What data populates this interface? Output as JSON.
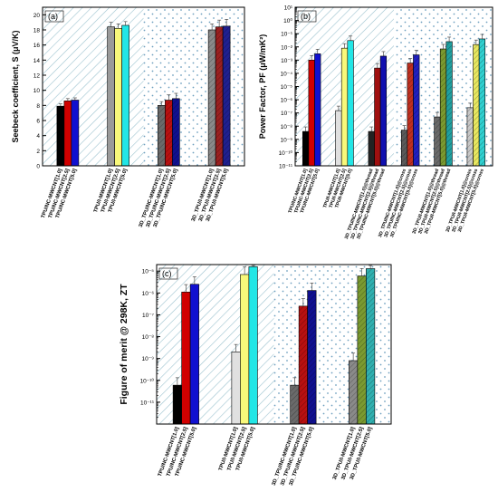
{
  "chart_data": [
    {
      "type": "bar",
      "panel_label": "(a)",
      "ylabel": "Seebeck coefficient, S (μV/K)",
      "yscale": "linear",
      "ylim": [
        0,
        21
      ],
      "yticks": [
        "0",
        "2",
        "4",
        "6",
        "8",
        "10",
        "12",
        "14",
        "16",
        "18",
        "20"
      ],
      "groups": [
        {
          "label": "",
          "items": [
            {
              "label": "TPU/NC-MWCNT[1.0]",
              "value": 7.9,
              "err": 0.3,
              "color": "#000000"
            },
            {
              "label": "TPU/NC-MWCNT[2.5]",
              "value": 8.6,
              "err": 0.3,
              "color": "#d10000"
            },
            {
              "label": "TPU/NC-MWCNT[5.0]",
              "value": 8.7,
              "err": 0.3,
              "color": "#1010d0"
            }
          ]
        },
        {
          "label": "",
          "items": [
            {
              "label": "TPU/I-MWCNT[1.0]",
              "value": 18.4,
              "err": 0.6,
              "color": "#9a9a9a"
            },
            {
              "label": "TPU/I-MWCNT[2.5]",
              "value": 18.2,
              "err": 0.6,
              "color": "#f8f87a"
            },
            {
              "label": "TPU/I-MWCNT[5.0]",
              "value": 18.6,
              "err": 0.5,
              "color": "#22e6e6"
            }
          ]
        },
        {
          "label": "",
          "items": [
            {
              "label": "3D_TPU/NC-MWCNT[1.0]",
              "value": 8.0,
              "err": 0.5,
              "color": "#6a6a6a"
            },
            {
              "label": "3D_TPU/NC-MWCNT[2.5]",
              "value": 8.7,
              "err": 0.7,
              "color": "#b81010"
            },
            {
              "label": "3D_TPU/NC-MWCNT[5.0]",
              "value": 8.9,
              "err": 0.7,
              "color": "#101090"
            }
          ]
        },
        {
          "label": "",
          "items": [
            {
              "label": "3D_TPU/I-MWCNT[1.0]",
              "value": 18.0,
              "err": 0.8,
              "color": "#8a8a8a"
            },
            {
              "label": "3D_TPU/I-MWCNT[2.5]",
              "value": 18.4,
              "err": 0.9,
              "color": "#9a2020"
            },
            {
              "label": "3D_TPU/I-MWCNT[5.0]",
              "value": 18.5,
              "err": 0.9,
              "color": "#202090"
            }
          ]
        }
      ]
    },
    {
      "type": "bar",
      "panel_label": "(b)",
      "ylabel": "Power Factor, PF (μW/mK²)",
      "yscale": "log",
      "ylim_exp": [
        -11,
        1
      ],
      "yticks": [
        "10⁻¹¹",
        "10⁻¹⁰",
        "10⁻⁹",
        "10⁻⁸",
        "10⁻⁷",
        "10⁻⁶",
        "10⁻⁵",
        "10⁻⁴",
        "10⁻³",
        "10⁻²",
        "10⁻¹",
        "10⁰",
        "10¹"
      ],
      "groups": [
        {
          "label": "",
          "items": [
            {
              "label": "TPU/NC-MWCNT[1.0]",
              "value": 4e-09,
              "color": "#000000"
            },
            {
              "label": "TPU/NC-MWCNT[2.5]",
              "value": 0.001,
              "color": "#d10000"
            },
            {
              "label": "TPU/NC-MWCNT[5.0]",
              "value": 0.003,
              "color": "#1010d0"
            }
          ]
        },
        {
          "label": "",
          "items": [
            {
              "label": "TPU/I-MWCNT[1.0]",
              "value": 1.5e-07,
              "color": "#e0e0e0"
            },
            {
              "label": "TPU/I-MWCNT[2.5]",
              "value": 0.008,
              "color": "#f8f87a"
            },
            {
              "label": "TPU/I-MWCNT[5.0]",
              "value": 0.03,
              "color": "#22e6e6"
            }
          ]
        },
        {
          "label": "",
          "items": [
            {
              "label": "3D_TPU/NC-MWCNT[1.0]@thread",
              "value": 4e-09,
              "color": "#222222"
            },
            {
              "label": "3D_TPU/NC-MWCNT[2.5]@thread",
              "value": 0.00025,
              "color": "#a01010"
            },
            {
              "label": "3D_TPU/NC-MWCNT[5.0]@thread",
              "value": 0.002,
              "color": "#1010b0"
            }
          ]
        },
        {
          "label": "",
          "items": [
            {
              "label": "3D_TPU/NC-MWCNT[1.0]@cross",
              "value": 5e-09,
              "color": "#5a5a5a"
            },
            {
              "label": "3D_TPU/NC-MWCNT[2.5]@cross",
              "value": 0.0006,
              "color": "#c03020"
            },
            {
              "label": "3D_TPU/NC-MWCNT[5.0]@cross",
              "value": 0.0025,
              "color": "#2020c0"
            }
          ]
        },
        {
          "label": "",
          "items": [
            {
              "label": "3D_TPU/I-MWCNT[1.0]@thread",
              "value": 5e-08,
              "color": "#6a6a6a"
            },
            {
              "label": "3D_TPU/I-MWCNT[2.5]@thread",
              "value": 0.007,
              "color": "#7a9a30"
            },
            {
              "label": "3D_TPU/I-MWCNT[5.0]@thread",
              "value": 0.025,
              "color": "#20a0a0"
            }
          ]
        },
        {
          "label": "",
          "items": [
            {
              "label": "3D_TPU/I-MWCNT[1.0]@cross",
              "value": 2.5e-07,
              "color": "#c8c8c8"
            },
            {
              "label": "3D_TPU/I-MWCNT[2.5]@cross",
              "value": 0.015,
              "color": "#e8e860"
            },
            {
              "label": "3D_TPU/I-MWCNT[5.0]@cross",
              "value": 0.04,
              "color": "#30d0d0"
            }
          ]
        }
      ]
    },
    {
      "type": "bar",
      "panel_label": "(c)",
      "ylabel": "Figure of merit @ 298K, ZT",
      "yscale": "log",
      "ylim_exp": [
        -12,
        -4.7
      ],
      "yticks": [
        "10⁻¹¹",
        "10⁻¹⁰",
        "10⁻⁹",
        "10⁻⁸",
        "10⁻⁷",
        "10⁻⁶",
        "10⁻⁵"
      ],
      "groups": [
        {
          "label": "",
          "items": [
            {
              "label": "TPU/NC-MWCNT[1.0]",
              "value": 6e-11,
              "color": "#000000"
            },
            {
              "label": "TPU/NC-MWCNT[2.5]",
              "value": 1.1e-06,
              "color": "#d10000"
            },
            {
              "label": "TPU/NC-MWCNT[5.0]",
              "value": 2.5e-06,
              "color": "#1010d0"
            }
          ]
        },
        {
          "label": "",
          "items": [
            {
              "label": "TPU/I-MWCNT[1.0]",
              "value": 2e-09,
              "color": "#e0e0e0"
            },
            {
              "label": "TPU/I-MWCNT[2.5]",
              "value": 7e-06,
              "color": "#f8f87a"
            },
            {
              "label": "TPU/I-MWCNT[5.0]",
              "value": 1.6e-05,
              "color": "#22e6e6"
            }
          ]
        },
        {
          "label": "",
          "items": [
            {
              "label": "3D_TPU/NC-MWCNT[1.0]",
              "value": 6e-11,
              "color": "#6a6a6a"
            },
            {
              "label": "3D_TPU/NC-MWCNT[2.5]",
              "value": 2.5e-07,
              "color": "#b81010"
            },
            {
              "label": "3D_TPU/NC-MWCNT[5.0]",
              "value": 1.3e-06,
              "color": "#101090"
            }
          ]
        },
        {
          "label": "",
          "items": [
            {
              "label": "3D_TPU/I-MWCNT[1.0]",
              "value": 8e-10,
              "color": "#8a8a8a"
            },
            {
              "label": "3D_TPU/I-MWCNT[2.5]",
              "value": 6e-06,
              "color": "#7a9a30"
            },
            {
              "label": "3D_TPU/I-MWCNT[5.0]",
              "value": 1.3e-05,
              "color": "#30b0b0"
            }
          ]
        }
      ]
    }
  ]
}
